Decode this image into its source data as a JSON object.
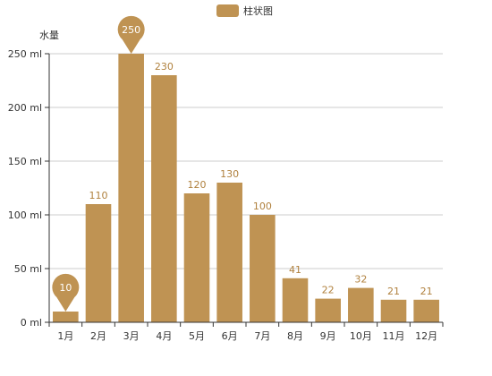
{
  "chart_data": {
    "type": "bar",
    "categories": [
      "1月",
      "2月",
      "3月",
      "4月",
      "5月",
      "6月",
      "7月",
      "8月",
      "9月",
      "10月",
      "11月",
      "12月"
    ],
    "series": [
      {
        "name": "柱状图",
        "values": [
          10,
          110,
          250,
          230,
          120,
          130,
          100,
          41,
          22,
          32,
          21,
          21
        ],
        "color": "#bf9353"
      }
    ],
    "ylabel": "水量",
    "xlabel": "",
    "ylim": [
      0,
      250
    ],
    "yticks": [
      0,
      50,
      100,
      150,
      200,
      250
    ],
    "y_tick_unit": " ml",
    "grid": true,
    "legend_position": "top-center",
    "data_labels": true,
    "markers": [
      {
        "type": "min",
        "category": "1月",
        "value": 10
      },
      {
        "type": "max",
        "category": "3月",
        "value": 250
      }
    ]
  },
  "colors": {
    "bar": "#bf9353",
    "data_label": "#b0813e",
    "grid": "#cccccc",
    "axis": "#333333"
  }
}
